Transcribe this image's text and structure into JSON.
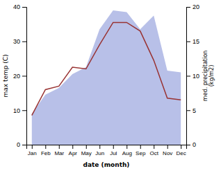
{
  "chart_data": {
    "type": "line",
    "categories": [
      "Jan",
      "Feb",
      "Mar",
      "Apr",
      "May",
      "Jun",
      "Jul",
      "Aug",
      "Sep",
      "Oct",
      "Nov",
      "Dec"
    ],
    "xlabel": "date (month)",
    "ylabel": "max temp (C)",
    "y2label": "med. precipitation\n(kg/m2)",
    "ylim": [
      0,
      40
    ],
    "yticks": [
      0,
      10,
      20,
      30,
      40
    ],
    "y2lim": [
      0,
      20
    ],
    "y2ticks": [
      0,
      5,
      10,
      15,
      20
    ],
    "grid": false,
    "series": [
      {
        "type": "area",
        "color": "#b8c0e8",
        "values": [
          9.0,
          14.5,
          16.5,
          20.5,
          22.5,
          33.5,
          39.0,
          38.5,
          33.5,
          37.5,
          21.5,
          21.0
        ]
      },
      {
        "type": "line",
        "color": "#993333",
        "values": [
          8.5,
          16.0,
          17.0,
          22.5,
          22.0,
          29.0,
          35.5,
          35.5,
          33.0,
          24.5,
          13.5,
          13.0
        ]
      }
    ]
  }
}
